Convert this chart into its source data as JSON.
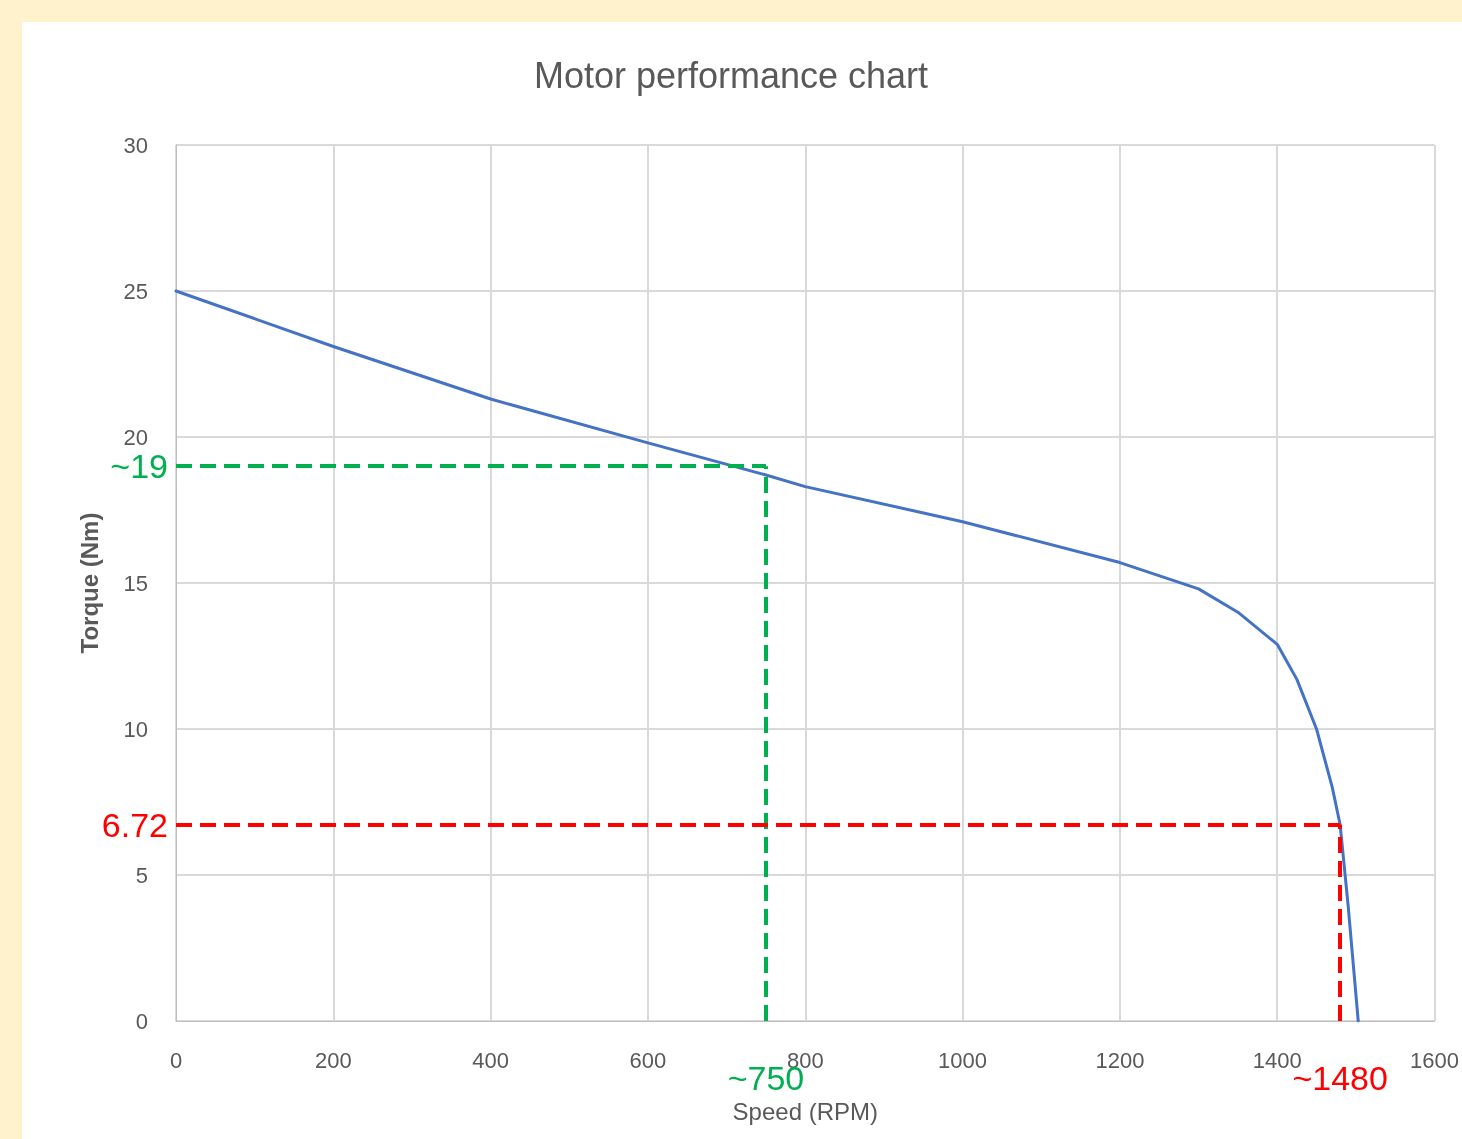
{
  "chart_data": {
    "type": "line",
    "title": "Motor performance chart",
    "xlabel": "Speed (RPM)",
    "ylabel": "Torque (Nm)",
    "x": [
      0,
      200,
      400,
      600,
      750,
      800,
      1000,
      1200,
      1300,
      1350,
      1400,
      1425,
      1450,
      1470,
      1480,
      1490,
      1503
    ],
    "series": [
      {
        "color": "#4472c4",
        "values": [
          25,
          23.1,
          21.3,
          19.8,
          18.7,
          18.3,
          17.1,
          15.7,
          14.8,
          14,
          12.9,
          11.7,
          10,
          8,
          6.72,
          4,
          0
        ]
      }
    ],
    "xlim": [
      0,
      1600
    ],
    "xticks": [
      0,
      200,
      400,
      600,
      800,
      1000,
      1200,
      1400,
      1600
    ],
    "ylim": [
      0,
      30
    ],
    "yticks": [
      0,
      5,
      10,
      15,
      20,
      25,
      30
    ],
    "ref_lines": [
      {
        "axis": "y",
        "value": 19,
        "label": "~19",
        "color": "#00b050",
        "line_style": "dashed"
      },
      {
        "axis": "x",
        "value": 750,
        "label": "~750",
        "color": "#00b050",
        "line_style": "dashed"
      },
      {
        "axis": "y",
        "value": 6.72,
        "label": "6.72",
        "color": "#ff0000",
        "line_style": "dashed"
      },
      {
        "axis": "x",
        "value": 1480,
        "label": "~1480",
        "color": "#ff0000",
        "line_style": "dashed"
      }
    ],
    "grid": true,
    "marker": "none",
    "line_style": "solid"
  }
}
